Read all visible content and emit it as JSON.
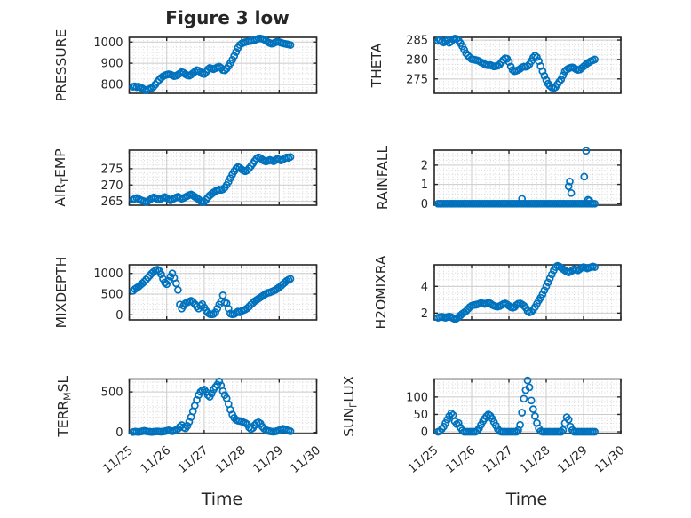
{
  "title": "Figure 3 low",
  "xlabel": "Time",
  "colors": {
    "marker": "#0072BD",
    "axis": "#262626",
    "text": "#262626",
    "major_grid": "#cbcbcb",
    "minor_grid": "#d6d6d6",
    "background": "#ffffff"
  },
  "x_axis": {
    "label": "Time",
    "tick_labels": [
      "11/25",
      "11/26",
      "11/27",
      "11/28",
      "11/29",
      "11/30"
    ],
    "xlim_days": [
      0,
      5
    ],
    "epoch": "11/25"
  },
  "chart_data": {
    "type": "scatter",
    "marker": "open-circle",
    "x_unit": "days after 11/25",
    "x_days": [
      0.1,
      0.15,
      0.2,
      0.25,
      0.3,
      0.35,
      0.4,
      0.45,
      0.5,
      0.55,
      0.6,
      0.65,
      0.7,
      0.75,
      0.8,
      0.85,
      0.9,
      0.95,
      1.0,
      1.05,
      1.1,
      1.15,
      1.2,
      1.25,
      1.3,
      1.35,
      1.4,
      1.45,
      1.5,
      1.55,
      1.6,
      1.65,
      1.7,
      1.75,
      1.8,
      1.85,
      1.9,
      1.95,
      2.0,
      2.05,
      2.1,
      2.15,
      2.2,
      2.25,
      2.3,
      2.35,
      2.4,
      2.45,
      2.5,
      2.55,
      2.6,
      2.65,
      2.7,
      2.75,
      2.8,
      2.85,
      2.9,
      2.95,
      3.0,
      3.05,
      3.1,
      3.15,
      3.2,
      3.25,
      3.3,
      3.35,
      3.4,
      3.45,
      3.5,
      3.55,
      3.6,
      3.65,
      3.7,
      3.75,
      3.8,
      3.85,
      3.9,
      3.95,
      4.0,
      4.05,
      4.1,
      4.15,
      4.2,
      4.25,
      4.3
    ],
    "panels": [
      {
        "id": "pressure",
        "row": 0,
        "col": 0,
        "ylabel": "PRESSURE",
        "ylabel_parts": [
          {
            "text": "PRESSURE"
          }
        ],
        "yticks": [
          800,
          900,
          1000
        ],
        "ylim": [
          758,
          1022
        ],
        "minor_y": 25,
        "values": [
          789,
          791,
          787,
          790,
          786,
          781,
          775,
          772,
          776,
          780,
          783,
          790,
          800,
          812,
          822,
          831,
          838,
          843,
          846,
          848,
          847,
          843,
          839,
          841,
          846,
          852,
          858,
          855,
          848,
          843,
          841,
          846,
          853,
          860,
          868,
          865,
          858,
          851,
          849,
          858,
          871,
          878,
          875,
          872,
          876,
          881,
          884,
          878,
          868,
          866,
          874,
          886,
          900,
          916,
          934,
          953,
          972,
          986,
          993,
          997,
          1000,
          1002,
          1004,
          1005,
          1007,
          1010,
          1013,
          1016,
          1017,
          1015,
          1012,
          1006,
          1000,
          995,
          992,
          994,
          999,
          1002,
          1000,
          997,
          994,
          992,
          990,
          988,
          986
        ]
      },
      {
        "id": "theta",
        "row": 0,
        "col": 1,
        "ylabel": "THETA",
        "ylabel_parts": [
          {
            "text": "THETA"
          }
        ],
        "yticks": [
          275,
          280,
          285
        ],
        "ylim": [
          271.3,
          285.7
        ],
        "minor_y": 1.25,
        "values": [
          284.8,
          285.0,
          284.6,
          284.4,
          284.7,
          284.9,
          284.3,
          284.6,
          285.2,
          285.4,
          285.3,
          284.9,
          284.2,
          283.4,
          282.5,
          281.6,
          281.0,
          280.5,
          280.1,
          280.0,
          279.9,
          279.8,
          279.6,
          279.3,
          279.1,
          278.8,
          278.6,
          278.5,
          278.6,
          278.4,
          278.2,
          278.3,
          278.4,
          278.7,
          279.3,
          279.9,
          280.3,
          280.2,
          279.4,
          278.2,
          277.3,
          277.0,
          277.1,
          277.3,
          277.6,
          278.0,
          278.2,
          278.1,
          278.3,
          278.8,
          279.6,
          280.5,
          281.0,
          280.6,
          279.6,
          278.3,
          277.0,
          275.8,
          274.7,
          273.8,
          273.2,
          272.8,
          272.6,
          272.9,
          273.6,
          274.3,
          274.9,
          275.9,
          276.9,
          277.4,
          277.7,
          277.9,
          278.0,
          277.8,
          277.5,
          277.3,
          277.4,
          277.8,
          278.2,
          278.6,
          279.0,
          279.3,
          279.6,
          279.8,
          280.0
        ]
      },
      {
        "id": "air_temp",
        "row": 1,
        "col": 0,
        "ylabel": "AIR_TEMP",
        "ylabel_parts": [
          {
            "text": "AIR"
          },
          {
            "text": "T",
            "sub": true
          },
          {
            "text": "EMP"
          }
        ],
        "yticks": [
          265,
          270,
          275
        ],
        "ylim": [
          263.8,
          280.7
        ],
        "minor_y": 1.25,
        "values": [
          265.5,
          265.8,
          266.0,
          265.7,
          265.4,
          265.2,
          265.0,
          264.8,
          265.1,
          265.5,
          265.9,
          266.2,
          266.0,
          265.7,
          265.5,
          265.8,
          266.1,
          266.3,
          266.0,
          265.6,
          265.3,
          265.6,
          265.9,
          266.2,
          266.4,
          266.1,
          265.8,
          266.0,
          266.3,
          266.6,
          266.9,
          267.1,
          266.8,
          266.4,
          266.0,
          265.6,
          265.1,
          264.7,
          264.9,
          265.5,
          266.2,
          266.8,
          267.3,
          267.7,
          268.1,
          268.4,
          268.6,
          268.5,
          268.7,
          269.2,
          270.0,
          271.0,
          272.1,
          273.2,
          274.2,
          275.0,
          275.5,
          275.3,
          274.8,
          274.4,
          274.2,
          274.5,
          275.1,
          275.8,
          276.6,
          277.4,
          278.1,
          278.5,
          278.3,
          277.8,
          277.4,
          277.2,
          277.4,
          277.7,
          277.5,
          277.3,
          277.6,
          278.0,
          277.8,
          277.5,
          277.8,
          278.2,
          278.5,
          278.3,
          278.6
        ]
      },
      {
        "id": "rainfall",
        "row": 1,
        "col": 1,
        "ylabel": "RAINFALL",
        "ylabel_parts": [
          {
            "text": "RAINFALL"
          }
        ],
        "yticks": [
          0,
          1,
          2
        ],
        "ylim": [
          -0.08,
          2.78
        ],
        "minor_y": 0.25,
        "values": [
          0,
          0,
          0,
          0,
          0,
          0,
          0,
          0,
          0,
          0,
          0,
          0,
          0,
          0,
          0,
          0,
          0,
          0,
          0,
          0,
          0,
          0,
          0,
          0,
          0,
          0,
          0,
          0,
          0,
          0,
          0,
          0,
          0,
          0,
          0,
          0,
          0,
          0,
          0,
          0,
          0,
          0,
          0,
          0,
          0,
          0,
          0,
          0,
          0,
          0,
          0,
          0,
          0,
          0,
          0,
          0,
          0,
          0,
          0,
          0,
          0,
          0,
          0,
          0,
          0,
          0,
          0,
          0,
          0,
          0,
          0,
          0,
          0,
          0,
          0,
          0,
          0,
          0,
          0,
          0,
          0,
          0,
          0,
          0,
          0
        ],
        "extra_points": [
          [
            2.35,
            0.25
          ],
          [
            3.6,
            0.9
          ],
          [
            3.63,
            1.15
          ],
          [
            3.67,
            0.55
          ],
          [
            4.02,
            1.4
          ],
          [
            4.07,
            2.75
          ],
          [
            4.12,
            0.2
          ],
          [
            4.16,
            0.15
          ]
        ]
      },
      {
        "id": "mixdepth",
        "row": 2,
        "col": 0,
        "ylabel": "MIXDEPTH",
        "ylabel_parts": [
          {
            "text": "MIXDEPTH"
          }
        ],
        "yticks": [
          0,
          500,
          1000
        ],
        "ylim": [
          -122,
          1208
        ],
        "minor_y": 125,
        "values": [
          580,
          620,
          650,
          680,
          720,
          760,
          800,
          850,
          900,
          950,
          1000,
          1040,
          1070,
          1090,
          1060,
          980,
          870,
          780,
          740,
          820,
          920,
          1000,
          890,
          760,
          600,
          250,
          150,
          220,
          280,
          300,
          320,
          340,
          310,
          260,
          200,
          150,
          220,
          260,
          180,
          100,
          50,
          20,
          10,
          20,
          60,
          150,
          250,
          320,
          470,
          300,
          280,
          150,
          30,
          10,
          20,
          50,
          80,
          60,
          90,
          110,
          130,
          160,
          200,
          250,
          290,
          330,
          360,
          390,
          420,
          450,
          480,
          510,
          530,
          540,
          560,
          580,
          600,
          630,
          660,
          700,
          740,
          780,
          820,
          850,
          870
        ]
      },
      {
        "id": "h2omixra",
        "row": 2,
        "col": 1,
        "ylabel": "H2OMIXRA",
        "ylabel_parts": [
          {
            "text": "H2OMIXRA"
          }
        ],
        "yticks": [
          2,
          4
        ],
        "ylim": [
          1.49,
          5.62
        ],
        "minor_y": 0.5,
        "values": [
          1.65,
          1.7,
          1.72,
          1.68,
          1.65,
          1.7,
          1.74,
          1.7,
          1.62,
          1.55,
          1.6,
          1.7,
          1.82,
          1.95,
          2.05,
          2.15,
          2.3,
          2.45,
          2.55,
          2.6,
          2.62,
          2.65,
          2.7,
          2.75,
          2.72,
          2.68,
          2.72,
          2.78,
          2.72,
          2.62,
          2.55,
          2.5,
          2.48,
          2.52,
          2.6,
          2.68,
          2.72,
          2.65,
          2.55,
          2.45,
          2.4,
          2.45,
          2.6,
          2.7,
          2.72,
          2.65,
          2.55,
          2.4,
          2.15,
          2.05,
          2.1,
          2.25,
          2.45,
          2.7,
          2.95,
          3.15,
          3.4,
          3.7,
          4.0,
          4.3,
          4.6,
          4.9,
          5.2,
          5.45,
          5.55,
          5.5,
          5.4,
          5.3,
          5.2,
          5.1,
          5.05,
          5.1,
          5.2,
          5.3,
          5.25,
          5.2,
          5.3,
          5.4,
          5.45,
          5.4,
          5.35,
          5.4,
          5.45,
          5.5,
          5.45
        ]
      },
      {
        "id": "terr_msl",
        "row": 3,
        "col": 0,
        "ylabel": "TERR_MSL",
        "ylabel_parts": [
          {
            "text": "TERR"
          },
          {
            "text": "M",
            "sub": true
          },
          {
            "text": "SL"
          }
        ],
        "yticks": [
          0,
          500
        ],
        "ylim": [
          -14,
          660
        ],
        "minor_y": 62.5,
        "values": [
          5,
          10,
          8,
          5,
          10,
          15,
          20,
          15,
          10,
          8,
          5,
          8,
          10,
          12,
          10,
          8,
          10,
          15,
          20,
          25,
          20,
          15,
          20,
          30,
          45,
          70,
          90,
          60,
          50,
          80,
          130,
          190,
          260,
          330,
          400,
          460,
          500,
          520,
          530,
          500,
          460,
          440,
          480,
          530,
          560,
          590,
          630,
          580,
          510,
          460,
          420,
          350,
          280,
          220,
          180,
          155,
          145,
          140,
          135,
          125,
          115,
          100,
          60,
          40,
          55,
          90,
          115,
          125,
          110,
          70,
          45,
          30,
          20,
          15,
          10,
          8,
          12,
          18,
          25,
          35,
          45,
          40,
          30,
          20,
          15
        ]
      },
      {
        "id": "sun_flux",
        "row": 3,
        "col": 1,
        "ylabel": "SUN_FLUX",
        "ylabel_parts": [
          {
            "text": "SUN"
          },
          {
            "text": "F",
            "sub": true
          },
          {
            "text": "LUX"
          }
        ],
        "yticks": [
          0,
          50,
          100
        ],
        "ylim": [
          -5,
          152
        ],
        "minor_y": 12.5,
        "values": [
          0,
          2,
          8,
          15,
          25,
          35,
          45,
          53,
          48,
          30,
          22,
          25,
          12,
          4,
          0,
          0,
          0,
          0,
          0,
          0,
          0,
          3,
          10,
          20,
          30,
          38,
          45,
          50,
          46,
          38,
          28,
          18,
          8,
          2,
          0,
          0,
          0,
          0,
          0,
          0,
          0,
          0,
          0,
          5,
          20,
          55,
          95,
          120,
          148,
          128,
          90,
          65,
          45,
          25,
          10,
          2,
          0,
          0,
          0,
          0,
          0,
          0,
          0,
          0,
          0,
          0,
          0,
          5,
          25,
          42,
          35,
          15,
          5,
          0,
          0,
          0,
          0,
          0,
          0,
          0,
          0,
          0,
          0,
          0,
          0
        ]
      }
    ]
  }
}
